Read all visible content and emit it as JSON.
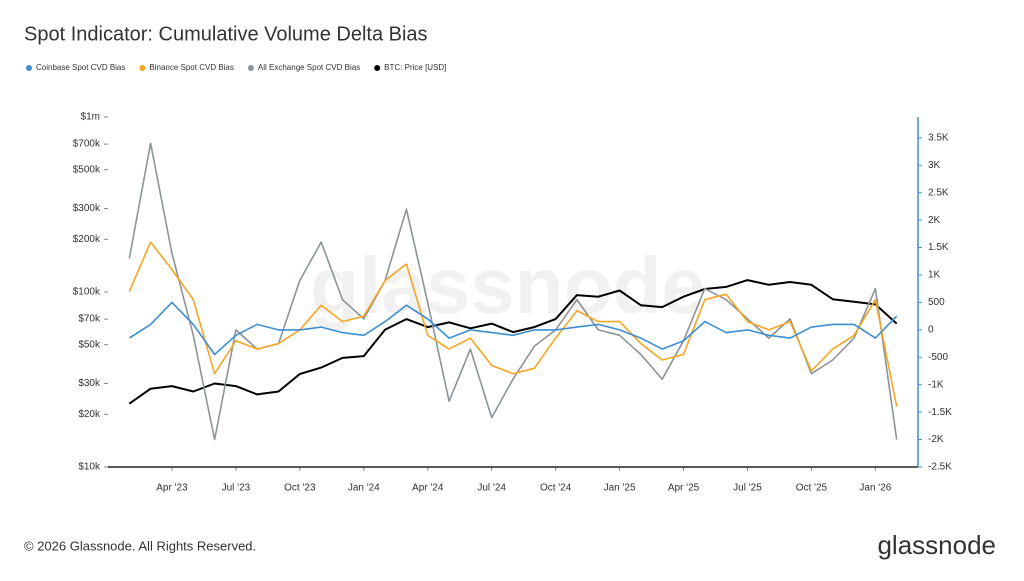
{
  "chart_data": {
    "type": "line",
    "title": "Spot Indicator: Cumulative Volume Delta Bias",
    "watermark": "glassnode",
    "footer": "© 2026 Glassnode. All Rights Reserved.",
    "logo": "glassnode",
    "x": [
      "2023-02",
      "2023-03",
      "2023-04",
      "2023-05",
      "2023-06",
      "2023-07",
      "2023-08",
      "2023-09",
      "2023-10",
      "2023-11",
      "2023-12",
      "2024-01",
      "2024-02",
      "2024-03",
      "2024-04",
      "2024-05",
      "2024-06",
      "2024-07",
      "2024-08",
      "2024-09",
      "2024-10",
      "2024-11",
      "2024-12",
      "2025-01",
      "2025-02",
      "2025-03",
      "2025-04",
      "2025-05",
      "2025-06",
      "2025-07",
      "2025-08",
      "2025-09",
      "2025-10",
      "2025-11",
      "2025-12",
      "2026-01",
      "2026-02"
    ],
    "xlim": [
      "2023-01",
      "2026-03"
    ],
    "xticks": [
      {
        "value": "2023-04",
        "label": "Apr '23"
      },
      {
        "value": "2023-07",
        "label": "Jul '23"
      },
      {
        "value": "2023-10",
        "label": "Oct '23"
      },
      {
        "value": "2024-01",
        "label": "Jan '24"
      },
      {
        "value": "2024-04",
        "label": "Apr '24"
      },
      {
        "value": "2024-07",
        "label": "Jul '24"
      },
      {
        "value": "2024-10",
        "label": "Oct '24"
      },
      {
        "value": "2025-01",
        "label": "Jan '25"
      },
      {
        "value": "2025-04",
        "label": "Apr '25"
      },
      {
        "value": "2025-07",
        "label": "Jul '25"
      },
      {
        "value": "2025-10",
        "label": "Oct '25"
      },
      {
        "value": "2026-01",
        "label": "Jan '26"
      }
    ],
    "ylog": true,
    "ylim": [
      10000,
      1000000
    ],
    "yticks": [
      {
        "value": 10000,
        "label": "$10k"
      },
      {
        "value": 20000,
        "label": "$20k"
      },
      {
        "value": 30000,
        "label": "$30k"
      },
      {
        "value": 50000,
        "label": "$50k"
      },
      {
        "value": 70000,
        "label": "$70k"
      },
      {
        "value": 100000,
        "label": "$100k"
      },
      {
        "value": 200000,
        "label": "$200k"
      },
      {
        "value": 300000,
        "label": "$300k"
      },
      {
        "value": 500000,
        "label": "$500k"
      },
      {
        "value": 700000,
        "label": "$700k"
      },
      {
        "value": 1000000,
        "label": "$1m"
      }
    ],
    "y2lim": [
      -2500,
      3880
    ],
    "y2ticks": [
      {
        "value": -2500,
        "label": "-2.5K"
      },
      {
        "value": -2000,
        "label": "-2K"
      },
      {
        "value": -1500,
        "label": "-1.5K"
      },
      {
        "value": -1000,
        "label": "-1K"
      },
      -500,
      0,
      500,
      {
        "value": 1000,
        "label": "1K"
      },
      {
        "value": 1500,
        "label": "1.5K"
      },
      {
        "value": 2000,
        "label": "2K"
      },
      {
        "value": 2500,
        "label": "2.5K"
      },
      {
        "value": 3000,
        "label": "3K"
      },
      {
        "value": 3500,
        "label": "3.5K"
      }
    ],
    "y2color": "#3d8fd1",
    "series": [
      {
        "name": "Coinbase Spot CVD Bias",
        "color": "#3d8fd1",
        "axis": "y2",
        "values": [
          -150,
          100,
          500,
          100,
          -450,
          -100,
          100,
          0,
          0,
          50,
          -50,
          -100,
          150,
          450,
          200,
          -150,
          0,
          -50,
          -100,
          0,
          0,
          50,
          100,
          0,
          -150,
          -350,
          -200,
          150,
          -50,
          0,
          -100,
          -150,
          50,
          100,
          100,
          -150,
          250
        ]
      },
      {
        "name": "Binance Spot CVD Bias",
        "color": "#f5a623",
        "axis": "y2",
        "values": [
          700,
          1600,
          1100,
          550,
          -800,
          -200,
          -350,
          -250,
          0,
          450,
          150,
          250,
          900,
          1200,
          -100,
          -350,
          -150,
          -650,
          -800,
          -700,
          -150,
          350,
          150,
          150,
          -250,
          -550,
          -450,
          550,
          650,
          150,
          0,
          150,
          -750,
          -350,
          -100,
          550,
          -1400
        ]
      },
      {
        "name": "All Exchange Spot CVD Bias",
        "color": "#8c9497",
        "axis": "y2",
        "values": [
          1300,
          3400,
          1400,
          -100,
          -2000,
          0,
          -350,
          -250,
          900,
          1600,
          550,
          200,
          900,
          2200,
          500,
          -1300,
          -350,
          -1600,
          -900,
          -300,
          0,
          550,
          0,
          -100,
          -450,
          -900,
          -200,
          750,
          550,
          200,
          -150,
          200,
          -800,
          -550,
          -150,
          750,
          -2000
        ]
      },
      {
        "name": "BTC: Price [USD]",
        "color": "#000000",
        "axis": "y",
        "values": [
          23000,
          28000,
          29000,
          27000,
          30000,
          29000,
          26000,
          27000,
          34000,
          37000,
          42000,
          43000,
          61000,
          70000,
          63000,
          67000,
          62000,
          66000,
          59000,
          63000,
          70000,
          96000,
          94000,
          102000,
          84000,
          82000,
          94000,
          104000,
          107000,
          117000,
          110000,
          114000,
          110000,
          91000,
          88000,
          85000,
          66000
        ]
      }
    ]
  }
}
